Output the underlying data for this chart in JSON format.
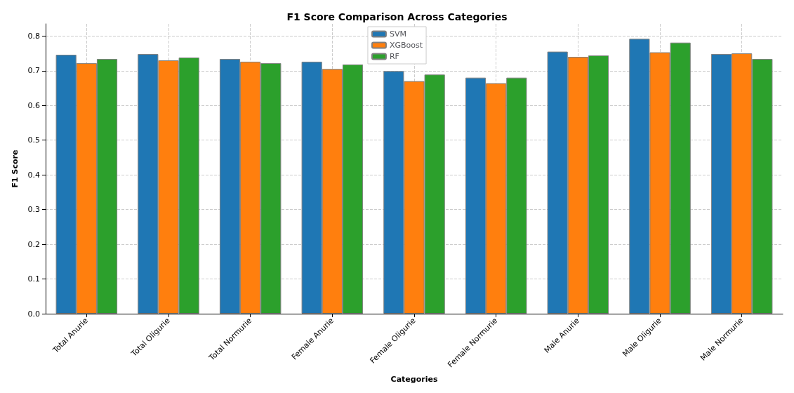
{
  "chart_data": {
    "type": "bar",
    "title": "F1 Score Comparison Across Categories",
    "xlabel": "Categories",
    "ylabel": "F1 Score",
    "categories": [
      "Total Anurie",
      "Total Oligurie",
      "Total Normurie",
      "Female Anurie",
      "Female Oligurie",
      "Female Normurie",
      "Male Anurie",
      "Male Oligurie",
      "Male Normurie"
    ],
    "series": [
      {
        "name": "SVM",
        "color": "#1f77b4",
        "values": [
          0.746,
          0.748,
          0.734,
          0.726,
          0.699,
          0.68,
          0.755,
          0.792,
          0.748
        ]
      },
      {
        "name": "XGBoost",
        "color": "#ff7f0e",
        "values": [
          0.722,
          0.73,
          0.726,
          0.705,
          0.67,
          0.664,
          0.74,
          0.753,
          0.75
        ]
      },
      {
        "name": "RF",
        "color": "#2ca02c",
        "values": [
          0.734,
          0.738,
          0.722,
          0.718,
          0.689,
          0.68,
          0.744,
          0.781,
          0.734
        ]
      }
    ],
    "ylim": [
      0,
      0.835
    ],
    "yticks": [
      {
        "value": 0,
        "label": "0.0"
      },
      {
        "value": 0.1,
        "label": "0.1"
      },
      {
        "value": 0.2,
        "label": "0.2"
      },
      {
        "value": 0.3,
        "label": "0.3"
      },
      {
        "value": 0.4,
        "label": "0.4"
      },
      {
        "value": 0.5,
        "label": "0.5"
      },
      {
        "value": 0.6,
        "label": "0.6"
      },
      {
        "value": 0.7,
        "label": "0.7"
      },
      {
        "value": 0.8,
        "label": "0.8"
      }
    ],
    "grid": true,
    "legend": "top"
  }
}
